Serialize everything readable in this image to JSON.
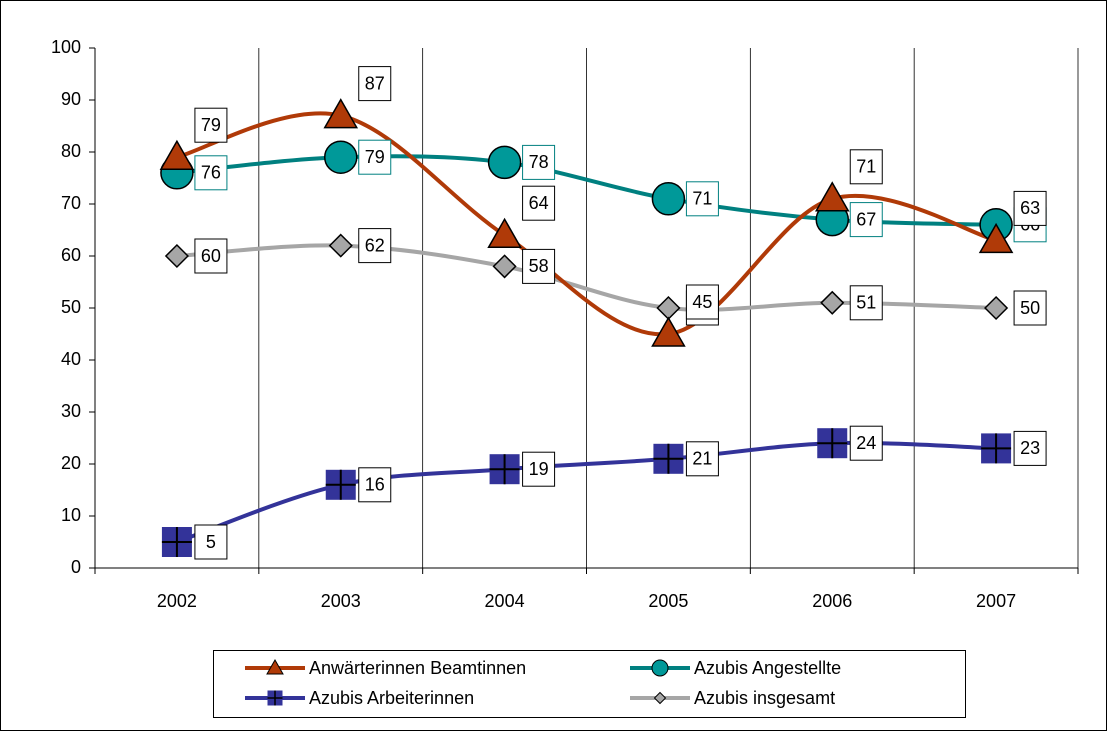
{
  "chart_data": {
    "type": "line",
    "categories": [
      "2002",
      "2003",
      "2004",
      "2005",
      "2006",
      "2007"
    ],
    "series": [
      {
        "name": "Anwärterinnen Beamtinnen",
        "color": "#b03a08",
        "marker": "triangle",
        "values": [
          79,
          87,
          64,
          45,
          71,
          63
        ]
      },
      {
        "name": "Azubis Angestellte",
        "color": "#008080",
        "marker": "circle",
        "values": [
          76,
          79,
          78,
          71,
          67,
          66
        ]
      },
      {
        "name": "Azubis Arbeiterinnen",
        "color": "#333399",
        "marker": "square",
        "values": [
          5,
          16,
          19,
          21,
          24,
          23
        ]
      },
      {
        "name": "Azubis insgesamt",
        "color": "#a6a6a6",
        "marker": "diamond",
        "values": [
          60,
          62,
          58,
          50,
          51,
          50
        ]
      }
    ],
    "ylim": [
      0,
      100
    ],
    "yticks": [
      0,
      10,
      20,
      30,
      40,
      50,
      60,
      70,
      80,
      90,
      100
    ],
    "smooth": true,
    "legend": "bottom"
  }
}
